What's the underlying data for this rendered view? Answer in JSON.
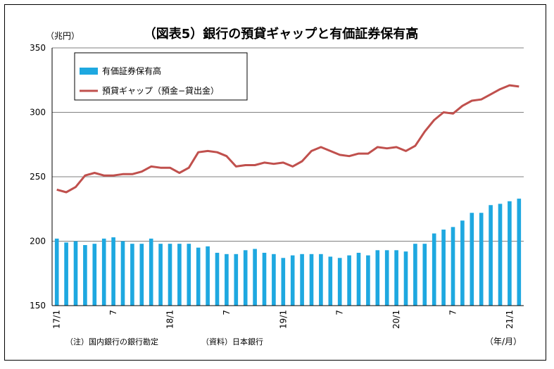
{
  "chart_data": {
    "type": "bar+line",
    "title": "（図表5）銀行の預貸ギャップと有価証券保有高",
    "yunit": "（兆円）",
    "xunit": "（年/月）",
    "ylim": [
      150,
      350
    ],
    "yticks": [
      150,
      200,
      250,
      300,
      350
    ],
    "grid": true,
    "legend_position": "top-left",
    "x": [
      "17/1",
      "17/2",
      "17/3",
      "17/4",
      "17/5",
      "17/6",
      "17/7",
      "17/8",
      "17/9",
      "17/10",
      "17/11",
      "17/12",
      "18/1",
      "18/2",
      "18/3",
      "18/4",
      "18/5",
      "18/6",
      "18/7",
      "18/8",
      "18/9",
      "18/10",
      "18/11",
      "18/12",
      "19/1",
      "19/2",
      "19/3",
      "19/4",
      "19/5",
      "19/6",
      "19/7",
      "19/8",
      "19/9",
      "19/10",
      "19/11",
      "19/12",
      "20/1",
      "20/2",
      "20/3",
      "20/4",
      "20/5",
      "20/6",
      "20/7",
      "20/8",
      "20/9",
      "20/10",
      "20/11",
      "20/12",
      "21/1",
      "21/2"
    ],
    "xtick_labels": [
      {
        "index": 0,
        "label": "17/1"
      },
      {
        "index": 6,
        "label": "7"
      },
      {
        "index": 12,
        "label": "18/1"
      },
      {
        "index": 18,
        "label": "7"
      },
      {
        "index": 24,
        "label": "19/1"
      },
      {
        "index": 30,
        "label": "7"
      },
      {
        "index": 36,
        "label": "20/1"
      },
      {
        "index": 42,
        "label": "7"
      },
      {
        "index": 48,
        "label": "21/1"
      }
    ],
    "series": [
      {
        "name": "有価証券保有高",
        "type": "bar",
        "color": "#1ea8e0",
        "values": [
          202,
          199,
          200,
          197,
          198,
          202,
          203,
          200,
          198,
          198,
          202,
          198,
          198,
          198,
          198,
          195,
          196,
          191,
          190,
          190,
          193,
          194,
          191,
          190,
          187,
          189,
          190,
          190,
          190,
          188,
          187,
          189,
          191,
          189,
          193,
          193,
          193,
          192,
          198,
          198,
          206,
          209,
          211,
          216,
          222,
          222,
          228,
          229,
          231,
          233
        ]
      },
      {
        "name": "預貸ギャップ（預金−貸出金）",
        "type": "line",
        "color": "#c0504d",
        "values": [
          240,
          238,
          242,
          251,
          253,
          251,
          251,
          252,
          252,
          254,
          258,
          257,
          257,
          253,
          257,
          269,
          270,
          269,
          266,
          258,
          259,
          259,
          261,
          260,
          261,
          258,
          262,
          270,
          273,
          270,
          267,
          266,
          268,
          268,
          273,
          272,
          273,
          270,
          274,
          285,
          294,
          300,
          299,
          305,
          309,
          310,
          314,
          318,
          321,
          320
        ]
      }
    ]
  },
  "notes": {
    "left": "（注）国内銀行の銀行勘定",
    "right": "（資料）日本銀行"
  }
}
